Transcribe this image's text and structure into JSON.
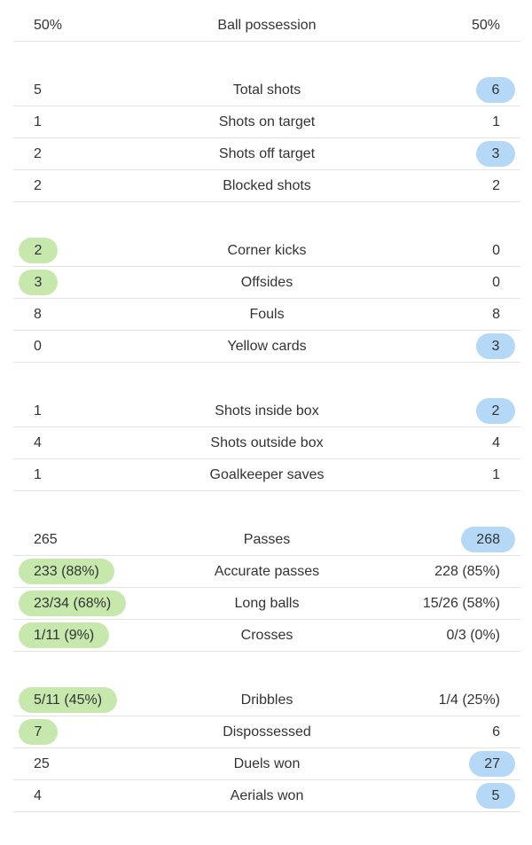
{
  "colors": {
    "home": "#c6e8ad",
    "away": "#b4d8f6"
  },
  "groups": [
    {
      "rows": [
        {
          "home": "50%",
          "label": "Ball possession",
          "away": "50%"
        }
      ]
    },
    {
      "rows": [
        {
          "home": 5,
          "label": "Total shots",
          "away": 6,
          "highlight": "away"
        },
        {
          "home": 1,
          "label": "Shots on target",
          "away": 1
        },
        {
          "home": 2,
          "label": "Shots off target",
          "away": 3,
          "highlight": "away"
        },
        {
          "home": 2,
          "label": "Blocked shots",
          "away": 2
        }
      ]
    },
    {
      "rows": [
        {
          "home": 2,
          "label": "Corner kicks",
          "away": 0,
          "highlight": "home"
        },
        {
          "home": 3,
          "label": "Offsides",
          "away": 0,
          "highlight": "home"
        },
        {
          "home": 8,
          "label": "Fouls",
          "away": 8
        },
        {
          "home": 0,
          "label": "Yellow cards",
          "away": 3,
          "highlight": "away"
        }
      ]
    },
    {
      "rows": [
        {
          "home": 1,
          "label": "Shots inside box",
          "away": 2,
          "highlight": "away"
        },
        {
          "home": 4,
          "label": "Shots outside box",
          "away": 4
        },
        {
          "home": 1,
          "label": "Goalkeeper saves",
          "away": 1
        }
      ]
    },
    {
      "rows": [
        {
          "home": 265,
          "label": "Passes",
          "away": 268,
          "highlight": "away"
        },
        {
          "home": "233 (88%)",
          "label": "Accurate passes",
          "away": "228 (85%)",
          "highlight": "home"
        },
        {
          "home": "23/34 (68%)",
          "label": "Long balls",
          "away": "15/26 (58%)",
          "highlight": "home"
        },
        {
          "home": "1/11 (9%)",
          "label": "Crosses",
          "away": "0/3 (0%)",
          "highlight": "home"
        }
      ]
    },
    {
      "rows": [
        {
          "home": "5/11 (45%)",
          "label": "Dribbles",
          "away": "1/4 (25%)",
          "highlight": "home"
        },
        {
          "home": 7,
          "label": "Dispossessed",
          "away": 6,
          "highlight": "home"
        },
        {
          "home": 25,
          "label": "Duels won",
          "away": 27,
          "highlight": "away"
        },
        {
          "home": 4,
          "label": "Aerials won",
          "away": 5,
          "highlight": "away"
        }
      ]
    }
  ]
}
